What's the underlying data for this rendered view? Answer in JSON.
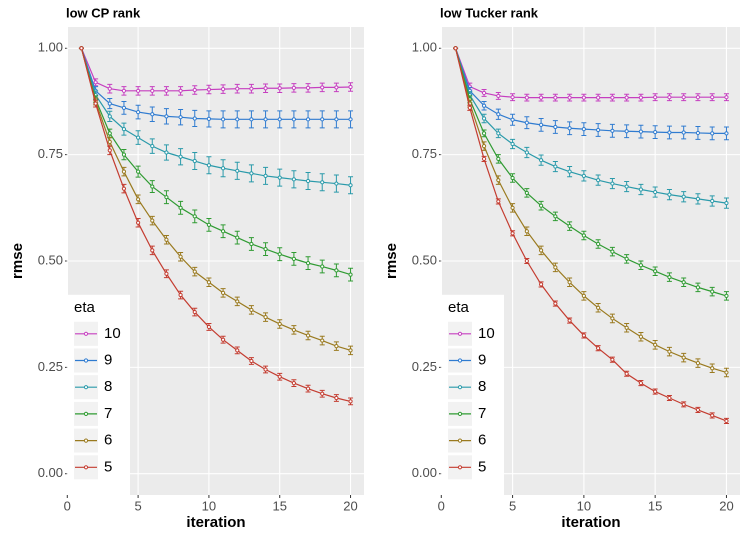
{
  "chart_data": [
    {
      "type": "line",
      "title": "low CP rank",
      "x_label": "iteration",
      "y_label": "rmse",
      "legend_title": "eta",
      "legend": "bottom-left",
      "grid": true,
      "x": [
        1,
        2,
        3,
        4,
        5,
        6,
        7,
        8,
        9,
        10,
        11,
        12,
        13,
        14,
        15,
        16,
        17,
        18,
        19,
        20
      ],
      "xlim": [
        0.05,
        20.95
      ],
      "xticks": [
        0,
        5,
        10,
        15,
        20
      ],
      "ylim": [
        -0.05,
        1.05
      ],
      "yticks": [
        {
          "value": 0,
          "label": "0.00"
        },
        {
          "value": 0.25,
          "label": "0.25"
        },
        {
          "value": 0.5,
          "label": "0.50"
        },
        {
          "value": 0.75,
          "label": "0.75"
        },
        {
          "value": 1,
          "label": "1.00"
        }
      ],
      "series": [
        {
          "name": "10",
          "color": "#c63fc0",
          "values": [
            1,
            0.92,
            0.905,
            0.9,
            0.9,
            0.9,
            0.9,
            0.9,
            0.902,
            0.903,
            0.904,
            0.905,
            0.905,
            0.906,
            0.906,
            0.907,
            0.907,
            0.908,
            0.908,
            0.909
          ],
          "errors": [
            0,
            0.008,
            0.01,
            0.01,
            0.01,
            0.01,
            0.01,
            0.01,
            0.01,
            0.01,
            0.01,
            0.01,
            0.01,
            0.01,
            0.01,
            0.01,
            0.01,
            0.01,
            0.01,
            0.01
          ]
        },
        {
          "name": "9",
          "color": "#2f7bd0",
          "values": [
            1,
            0.9,
            0.87,
            0.86,
            0.85,
            0.845,
            0.84,
            0.838,
            0.835,
            0.834,
            0.833,
            0.833,
            0.833,
            0.833,
            0.833,
            0.833,
            0.833,
            0.833,
            0.833,
            0.833
          ],
          "errors": [
            0,
            0.01,
            0.012,
            0.015,
            0.016,
            0.017,
            0.018,
            0.018,
            0.019,
            0.019,
            0.02,
            0.02,
            0.02,
            0.02,
            0.02,
            0.02,
            0.02,
            0.02,
            0.02,
            0.02
          ]
        },
        {
          "name": "8",
          "color": "#2a9aaa",
          "values": [
            1,
            0.89,
            0.84,
            0.81,
            0.79,
            0.77,
            0.755,
            0.745,
            0.735,
            0.725,
            0.718,
            0.712,
            0.706,
            0.7,
            0.696,
            0.692,
            0.688,
            0.685,
            0.682,
            0.678
          ],
          "errors": [
            0,
            0.01,
            0.012,
            0.014,
            0.016,
            0.017,
            0.018,
            0.019,
            0.02,
            0.02,
            0.02,
            0.02,
            0.02,
            0.02,
            0.02,
            0.02,
            0.02,
            0.02,
            0.02,
            0.02
          ]
        },
        {
          "name": "7",
          "color": "#2f9b32",
          "values": [
            1,
            0.88,
            0.8,
            0.75,
            0.71,
            0.675,
            0.65,
            0.625,
            0.605,
            0.585,
            0.57,
            0.555,
            0.54,
            0.528,
            0.516,
            0.505,
            0.495,
            0.487,
            0.478,
            0.468
          ],
          "errors": [
            0,
            0.008,
            0.01,
            0.012,
            0.013,
            0.014,
            0.015,
            0.015,
            0.015,
            0.015,
            0.015,
            0.015,
            0.015,
            0.015,
            0.015,
            0.015,
            0.015,
            0.015,
            0.015,
            0.015
          ]
        },
        {
          "name": "6",
          "color": "#9a7a1f",
          "values": [
            1,
            0.875,
            0.78,
            0.71,
            0.645,
            0.595,
            0.55,
            0.51,
            0.475,
            0.45,
            0.425,
            0.405,
            0.385,
            0.368,
            0.352,
            0.338,
            0.325,
            0.313,
            0.3,
            0.29
          ],
          "errors": [
            0,
            0.008,
            0.01,
            0.01,
            0.01,
            0.01,
            0.01,
            0.01,
            0.01,
            0.01,
            0.01,
            0.01,
            0.01,
            0.01,
            0.01,
            0.01,
            0.01,
            0.01,
            0.01,
            0.01
          ]
        },
        {
          "name": "5",
          "color": "#c43c30",
          "values": [
            1,
            0.87,
            0.76,
            0.67,
            0.59,
            0.525,
            0.47,
            0.42,
            0.38,
            0.345,
            0.315,
            0.29,
            0.265,
            0.245,
            0.228,
            0.213,
            0.2,
            0.188,
            0.178,
            0.17
          ],
          "errors": [
            0,
            0.008,
            0.01,
            0.01,
            0.01,
            0.01,
            0.009,
            0.009,
            0.009,
            0.008,
            0.008,
            0.008,
            0.008,
            0.008,
            0.008,
            0.008,
            0.008,
            0.008,
            0.008,
            0.008
          ]
        }
      ]
    },
    {
      "type": "line",
      "title": "low Tucker rank",
      "x_label": "iteration",
      "y_label": "rmse",
      "legend_title": "eta",
      "legend": "bottom-left",
      "grid": true,
      "x": [
        1,
        2,
        3,
        4,
        5,
        6,
        7,
        8,
        9,
        10,
        11,
        12,
        13,
        14,
        15,
        16,
        17,
        18,
        19,
        20
      ],
      "xlim": [
        0.05,
        20.95
      ],
      "xticks": [
        0,
        5,
        10,
        15,
        20
      ],
      "ylim": [
        -0.05,
        1.05
      ],
      "yticks": [
        {
          "value": 0,
          "label": "0.00"
        },
        {
          "value": 0.25,
          "label": "0.25"
        },
        {
          "value": 0.5,
          "label": "0.50"
        },
        {
          "value": 0.75,
          "label": "0.75"
        },
        {
          "value": 1,
          "label": "1.00"
        }
      ],
      "series": [
        {
          "name": "10",
          "color": "#c63fc0",
          "values": [
            1,
            0.91,
            0.895,
            0.888,
            0.885,
            0.884,
            0.884,
            0.884,
            0.884,
            0.884,
            0.884,
            0.884,
            0.884,
            0.884,
            0.885,
            0.885,
            0.885,
            0.885,
            0.885,
            0.885
          ],
          "errors": [
            0,
            0.008,
            0.008,
            0.008,
            0.008,
            0.008,
            0.008,
            0.008,
            0.008,
            0.008,
            0.008,
            0.008,
            0.008,
            0.008,
            0.008,
            0.008,
            0.008,
            0.008,
            0.008,
            0.008
          ]
        },
        {
          "name": "9",
          "color": "#2f7bd0",
          "values": [
            1,
            0.9,
            0.865,
            0.845,
            0.832,
            0.825,
            0.82,
            0.815,
            0.812,
            0.81,
            0.808,
            0.806,
            0.805,
            0.804,
            0.803,
            0.802,
            0.802,
            0.801,
            0.8,
            0.8
          ],
          "errors": [
            0,
            0.008,
            0.01,
            0.012,
            0.013,
            0.014,
            0.015,
            0.015,
            0.015,
            0.015,
            0.015,
            0.015,
            0.015,
            0.015,
            0.015,
            0.015,
            0.015,
            0.015,
            0.015,
            0.015
          ]
        },
        {
          "name": "8",
          "color": "#2a9aaa",
          "values": [
            1,
            0.89,
            0.835,
            0.8,
            0.775,
            0.755,
            0.737,
            0.722,
            0.71,
            0.7,
            0.69,
            0.682,
            0.675,
            0.668,
            0.662,
            0.656,
            0.651,
            0.646,
            0.641,
            0.636
          ],
          "errors": [
            0,
            0.008,
            0.01,
            0.01,
            0.011,
            0.012,
            0.012,
            0.012,
            0.012,
            0.012,
            0.012,
            0.012,
            0.012,
            0.012,
            0.012,
            0.012,
            0.012,
            0.012,
            0.012,
            0.012
          ]
        },
        {
          "name": "7",
          "color": "#2f9b32",
          "values": [
            1,
            0.88,
            0.8,
            0.74,
            0.695,
            0.66,
            0.63,
            0.605,
            0.582,
            0.56,
            0.54,
            0.522,
            0.505,
            0.49,
            0.476,
            0.462,
            0.45,
            0.438,
            0.428,
            0.418
          ],
          "errors": [
            0,
            0.008,
            0.008,
            0.01,
            0.01,
            0.01,
            0.01,
            0.01,
            0.01,
            0.01,
            0.01,
            0.01,
            0.01,
            0.01,
            0.01,
            0.01,
            0.01,
            0.01,
            0.01,
            0.01
          ]
        },
        {
          "name": "6",
          "color": "#9a7a1f",
          "values": [
            1,
            0.87,
            0.77,
            0.69,
            0.625,
            0.57,
            0.525,
            0.485,
            0.45,
            0.418,
            0.39,
            0.365,
            0.343,
            0.322,
            0.303,
            0.287,
            0.273,
            0.26,
            0.248,
            0.238
          ],
          "errors": [
            0,
            0.008,
            0.01,
            0.01,
            0.01,
            0.01,
            0.01,
            0.01,
            0.01,
            0.01,
            0.01,
            0.01,
            0.01,
            0.01,
            0.01,
            0.01,
            0.01,
            0.01,
            0.01,
            0.01
          ]
        },
        {
          "name": "5",
          "color": "#c43c30",
          "values": [
            1,
            0.86,
            0.74,
            0.64,
            0.565,
            0.5,
            0.445,
            0.4,
            0.36,
            0.325,
            0.295,
            0.268,
            0.235,
            0.213,
            0.193,
            0.178,
            0.163,
            0.15,
            0.137,
            0.124
          ],
          "errors": [
            0,
            0.006,
            0.006,
            0.006,
            0.006,
            0.006,
            0.006,
            0.006,
            0.006,
            0.006,
            0.006,
            0.006,
            0.006,
            0.006,
            0.006,
            0.006,
            0.006,
            0.006,
            0.006,
            0.006
          ]
        }
      ]
    }
  ]
}
